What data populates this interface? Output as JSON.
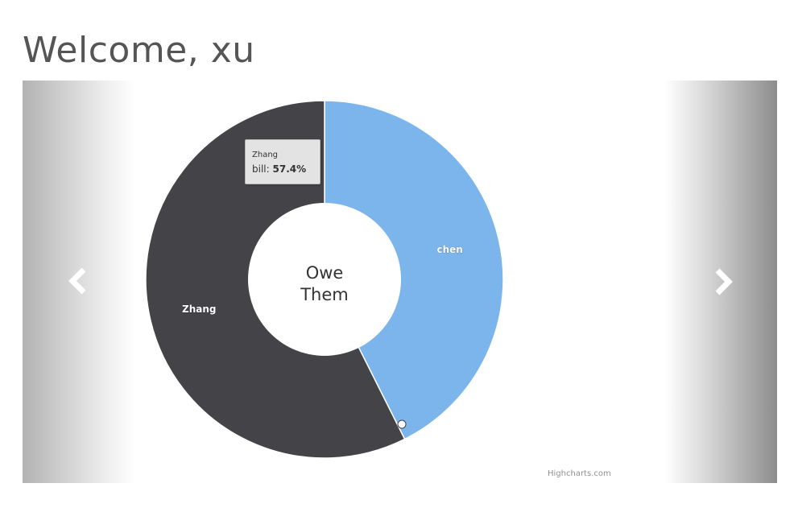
{
  "page": {
    "welcome_text": "Welcome, xu"
  },
  "carousel": {
    "prev_icon": "chevron-left-icon",
    "next_icon": "chevron-right-icon"
  },
  "chart_data": {
    "type": "pie",
    "variant": "donut",
    "center_label_line1": "Owe",
    "center_label_line2": "Them",
    "series_name": "bill",
    "slices": [
      {
        "name": "chen",
        "percent": 42.6,
        "color": "#7cb5ec"
      },
      {
        "name": "Zhang",
        "percent": 57.4,
        "color": "#434348"
      }
    ],
    "tooltip": {
      "name": "Zhang",
      "label": "bill:",
      "value": "57.4%"
    },
    "credits": "Highcharts.com"
  }
}
